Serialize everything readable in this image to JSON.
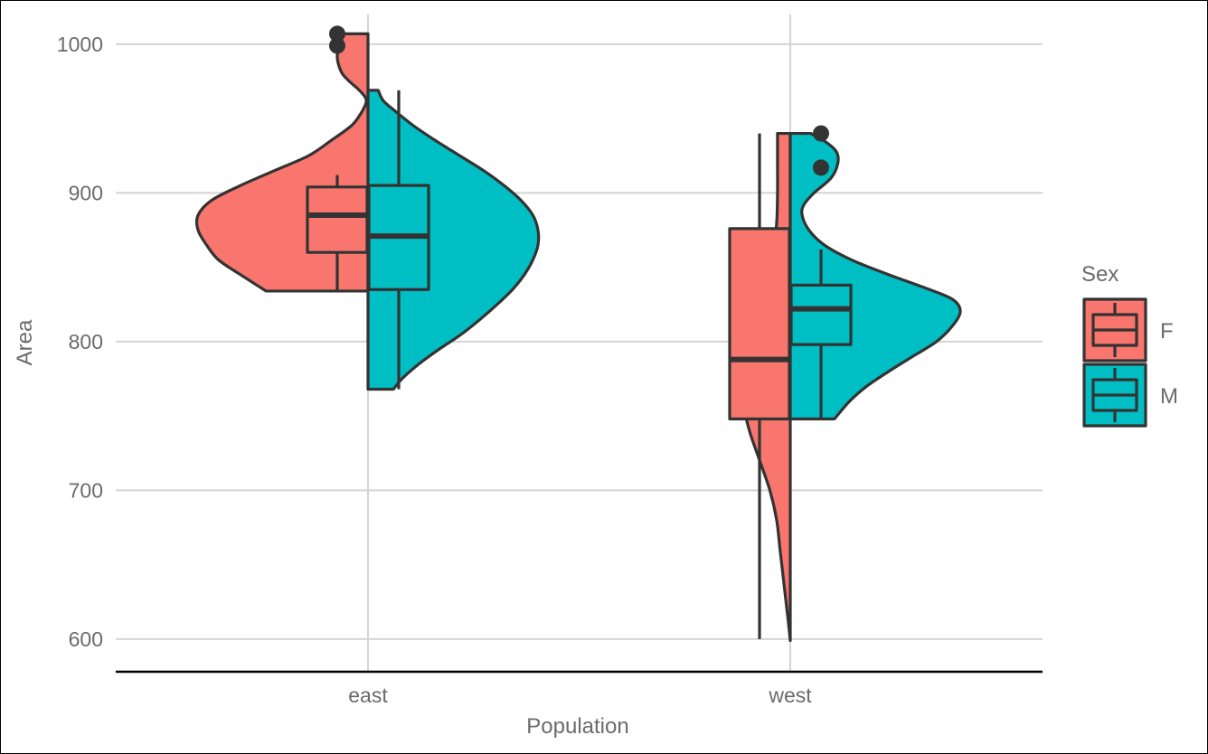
{
  "chart_data": {
    "type": "violin",
    "title": "",
    "xlabel": "Population",
    "ylabel": "Area",
    "categories": [
      "east",
      "west"
    ],
    "ylim": [
      578,
      1020
    ],
    "yticks": [
      600,
      700,
      800,
      900,
      1000
    ],
    "grid": true,
    "legend": {
      "title": "Sex",
      "position": "right",
      "entries": [
        "F",
        "M"
      ]
    },
    "colors": {
      "F": "#F8766D",
      "M": "#00BFC4",
      "outline": "#333333",
      "grid": "#d4d4d4"
    },
    "series": [
      {
        "name": "F",
        "groups": [
          {
            "category": "east",
            "violin_range": [
              834,
              1007
            ],
            "violin_density": [
              [
                834,
                0.6
              ],
              [
                845,
                0.75
              ],
              [
                855,
                0.88
              ],
              [
                865,
                0.95
              ],
              [
                875,
                1.0
              ],
              [
                885,
                1.0
              ],
              [
                895,
                0.92
              ],
              [
                905,
                0.75
              ],
              [
                915,
                0.55
              ],
              [
                925,
                0.35
              ],
              [
                935,
                0.22
              ],
              [
                945,
                0.1
              ],
              [
                952,
                0.05
              ],
              [
                958,
                0.02
              ],
              [
                962,
                0.01
              ],
              [
                965,
                0.02
              ],
              [
                970,
                0.06
              ],
              [
                975,
                0.11
              ],
              [
                980,
                0.15
              ],
              [
                985,
                0.17
              ],
              [
                990,
                0.18
              ],
              [
                995,
                0.18
              ],
              [
                1000,
                0.18
              ],
              [
                1007,
                0.18
              ]
            ],
            "box": {
              "q1": 860,
              "median": 885,
              "q3": 904,
              "whisker_low": 834,
              "whisker_high": 912
            },
            "outliers": [
              999,
              1007
            ]
          },
          {
            "category": "west",
            "violin_range": [
              599,
              940
            ],
            "violin_density": [
              [
                599,
                0.0
              ],
              [
                610,
                0.01
              ],
              [
                620,
                0.02
              ],
              [
                640,
                0.04
              ],
              [
                660,
                0.06
              ],
              [
                680,
                0.08
              ],
              [
                700,
                0.12
              ],
              [
                720,
                0.18
              ],
              [
                740,
                0.24
              ],
              [
                760,
                0.28
              ],
              [
                780,
                0.29
              ],
              [
                800,
                0.26
              ],
              [
                820,
                0.2
              ],
              [
                840,
                0.14
              ],
              [
                860,
                0.1
              ],
              [
                880,
                0.08
              ],
              [
                900,
                0.075
              ],
              [
                920,
                0.075
              ],
              [
                940,
                0.075
              ]
            ],
            "box": {
              "q1": 748,
              "median": 788,
              "q3": 876,
              "whisker_low": 600,
              "whisker_high": 940
            },
            "outliers": []
          }
        ]
      },
      {
        "name": "M",
        "groups": [
          {
            "category": "east",
            "violin_range": [
              768,
              969
            ],
            "violin_density": [
              [
                768,
                0.15
              ],
              [
                775,
                0.2
              ],
              [
                785,
                0.3
              ],
              [
                795,
                0.42
              ],
              [
                805,
                0.55
              ],
              [
                815,
                0.66
              ],
              [
                825,
                0.76
              ],
              [
                835,
                0.85
              ],
              [
                845,
                0.92
              ],
              [
                855,
                0.97
              ],
              [
                865,
                1.0
              ],
              [
                875,
                1.0
              ],
              [
                885,
                0.97
              ],
              [
                895,
                0.9
              ],
              [
                905,
                0.8
              ],
              [
                915,
                0.68
              ],
              [
                925,
                0.54
              ],
              [
                935,
                0.4
              ],
              [
                945,
                0.27
              ],
              [
                955,
                0.16
              ],
              [
                962,
                0.09
              ],
              [
                969,
                0.06
              ]
            ],
            "box": {
              "q1": 835,
              "median": 871,
              "q3": 905,
              "whisker_low": 768,
              "whisker_high": 969
            },
            "outliers": []
          },
          {
            "category": "west",
            "violin_range": [
              748,
              940
            ],
            "violin_density": [
              [
                748,
                0.26
              ],
              [
                760,
                0.35
              ],
              [
                770,
                0.45
              ],
              [
                780,
                0.58
              ],
              [
                790,
                0.72
              ],
              [
                800,
                0.86
              ],
              [
                810,
                0.95
              ],
              [
                820,
                1.0
              ],
              [
                828,
                0.96
              ],
              [
                835,
                0.82
              ],
              [
                845,
                0.58
              ],
              [
                855,
                0.36
              ],
              [
                865,
                0.2
              ],
              [
                875,
                0.11
              ],
              [
                885,
                0.07
              ],
              [
                892,
                0.08
              ],
              [
                900,
                0.14
              ],
              [
                910,
                0.24
              ],
              [
                920,
                0.28
              ],
              [
                928,
                0.27
              ],
              [
                935,
                0.2
              ],
              [
                940,
                0.12
              ]
            ],
            "box": {
              "q1": 798,
              "median": 822,
              "q3": 838,
              "whisker_low": 748,
              "whisker_high": 862
            },
            "outliers": [
              917,
              940
            ]
          }
        ]
      }
    ]
  }
}
